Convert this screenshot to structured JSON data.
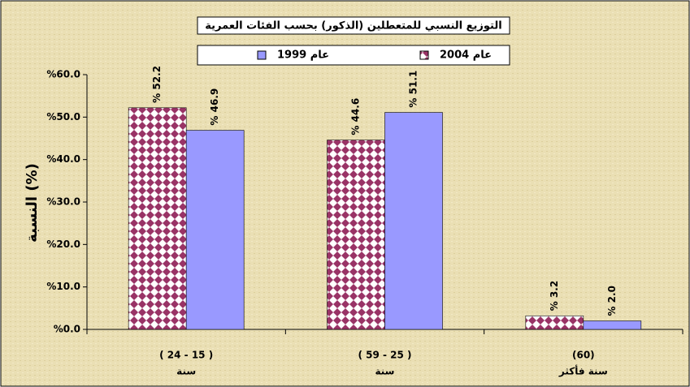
{
  "chart_data": {
    "type": "bar",
    "title": "التوزيع النسبي للمتعطلين (الذكور) بحسب الفئات العمرية",
    "y_label": "النسبة (%)",
    "categories": [
      "( 24 - 15 )",
      "( 59 - 25 )",
      "(60)"
    ],
    "category_notes": [
      "سنة",
      "سنة",
      "سنة فأكثر"
    ],
    "series": [
      {
        "name": "عام 2004",
        "color": "#993366",
        "pattern": "checker",
        "values": [
          52.2,
          44.6,
          3.2
        ],
        "value_labels": [
          "% 52.2",
          "% 44.6",
          "% 3.2"
        ]
      },
      {
        "name": "عام 1999",
        "color": "#9999ff",
        "values": [
          46.9,
          51.1,
          2.0
        ],
        "value_labels": [
          "% 46.9",
          "% 51.1",
          "% 2.0"
        ]
      }
    ],
    "ylim": [
      0,
      60
    ],
    "yticks": [
      {
        "value": 0,
        "label": "%0.0"
      },
      {
        "value": 10,
        "label": "%10.0"
      },
      {
        "value": 20,
        "label": "%20.0"
      },
      {
        "value": 30,
        "label": "%30.0"
      },
      {
        "value": 40,
        "label": "%40.0"
      },
      {
        "value": 50,
        "label": "%50.0"
      },
      {
        "value": 60,
        "label": "%60.0"
      }
    ],
    "grid": false
  }
}
